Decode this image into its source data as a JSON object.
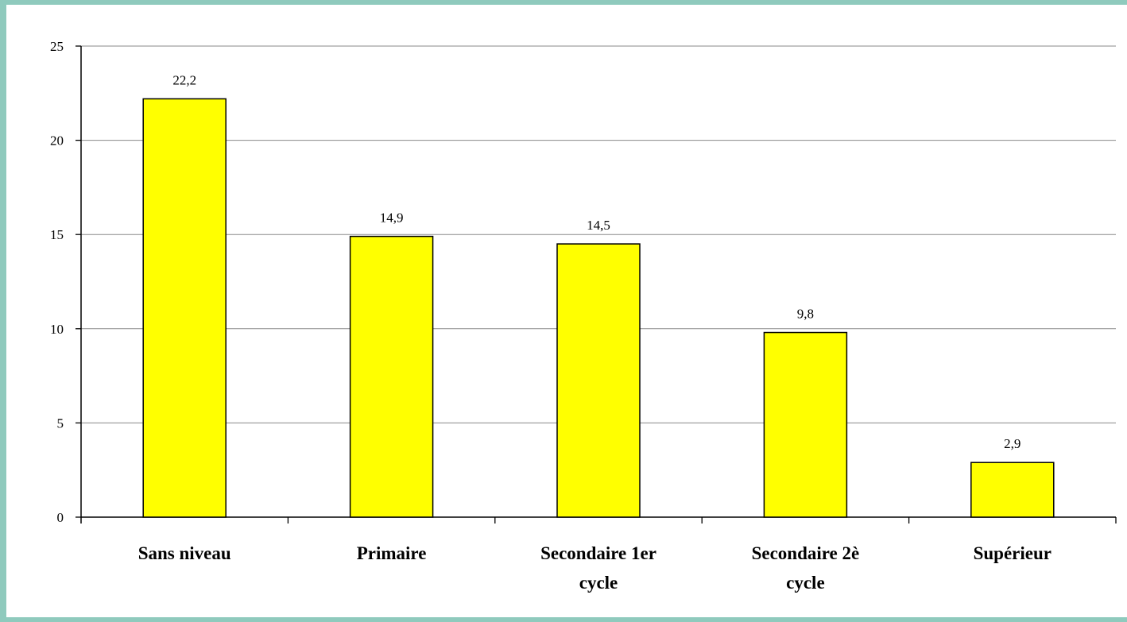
{
  "chart_data": {
    "type": "bar",
    "categories": [
      [
        "Sans niveau"
      ],
      [
        "Primaire"
      ],
      [
        "Secondaire 1er",
        "cycle"
      ],
      [
        "Secondaire 2è",
        "cycle"
      ],
      [
        "Supérieur"
      ]
    ],
    "values": [
      22.2,
      14.9,
      14.5,
      9.8,
      2.9
    ],
    "data_labels": [
      "22,2",
      "14,9",
      "14,5",
      "9,8",
      "2,9"
    ],
    "yticks": [
      0,
      5,
      10,
      15,
      20,
      25
    ],
    "ylim": [
      0,
      25
    ],
    "grid": true,
    "bar_color": "#ffff00",
    "bar_edge_color": "#000000",
    "background_color": "#8fcabd"
  }
}
